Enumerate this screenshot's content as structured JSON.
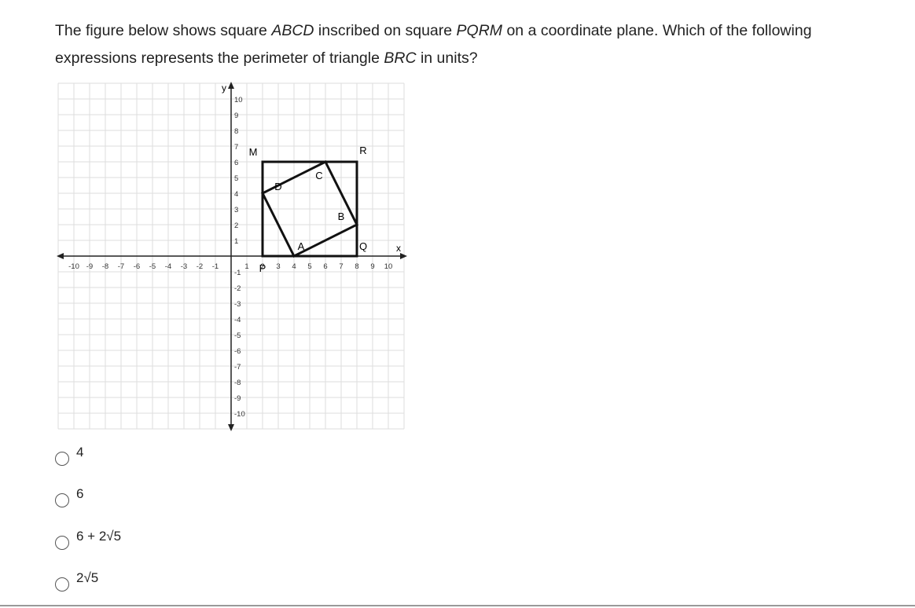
{
  "question": {
    "parts": [
      "The figure below shows square ",
      "ABCD",
      " inscribed on square ",
      "PQRM",
      " on a coordinate plane. Which of the following expressions represents the perimeter of triangle ",
      "BRC",
      " in units?"
    ]
  },
  "figure": {
    "x_axis_label": "x",
    "y_axis_label": "y",
    "xticks": [
      -10,
      -9,
      -8,
      -7,
      -6,
      -5,
      -4,
      -3,
      -2,
      -1,
      1,
      2,
      3,
      4,
      5,
      6,
      7,
      8,
      9,
      10
    ],
    "yticks": [
      10,
      9,
      8,
      7,
      6,
      5,
      4,
      3,
      2,
      1,
      -1,
      -2,
      -3,
      -4,
      -5,
      -6,
      -7,
      -8,
      -9,
      -10
    ],
    "points": [
      "P",
      "Q",
      "R",
      "M",
      "A",
      "B",
      "C",
      "D"
    ]
  },
  "options": [
    "4",
    "6",
    "6 + 2√5",
    "2√5"
  ]
}
